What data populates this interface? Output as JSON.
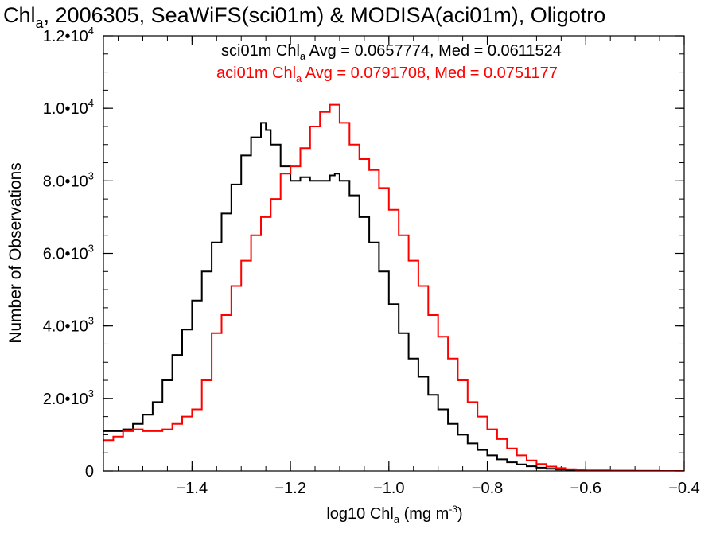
{
  "chart_data": {
    "type": "line",
    "step": true,
    "title": {
      "prefix": "Chl",
      "sub": "a",
      "suffix": ", 2006305, SeaWiFS(sci01m) & MODISA(aci01m), Oligotro"
    },
    "xlabel": {
      "prefix": "log10 Chl",
      "sub": "a",
      "mid": " (mg m",
      "sup": "-3",
      "suffix": ")"
    },
    "ylabel": "Number of Observations",
    "xlim": [
      -1.58,
      -0.4
    ],
    "ylim": [
      0,
      12000
    ],
    "x_ticks": [
      {
        "value": -1.4,
        "label": "−1.4"
      },
      {
        "value": -1.2,
        "label": "−1.2"
      },
      {
        "value": -1.0,
        "label": "−1.0"
      },
      {
        "value": -0.8,
        "label": "−0.8"
      },
      {
        "value": -0.6,
        "label": "−0.6"
      },
      {
        "value": -0.4,
        "label": "−0.4"
      }
    ],
    "y_ticks": [
      {
        "value": 0,
        "mant": "0",
        "exp": ""
      },
      {
        "value": 2000,
        "mant": "2.0•10",
        "exp": "3"
      },
      {
        "value": 4000,
        "mant": "4.0•10",
        "exp": "3"
      },
      {
        "value": 6000,
        "mant": "6.0•10",
        "exp": "3"
      },
      {
        "value": 8000,
        "mant": "8.0•10",
        "exp": "3"
      },
      {
        "value": 10000,
        "mant": "1.0•10",
        "exp": "4"
      },
      {
        "value": 12000,
        "mant": "1.2•10",
        "exp": "4"
      }
    ],
    "x_minor_step": 0.05,
    "y_minor_step": 500,
    "annotations": [
      {
        "prefix": "sci01m Chl",
        "sub": "a",
        "suffix": " Avg = 0.0657774, Med = 0.0611524",
        "color": "#000000"
      },
      {
        "prefix": "aci01m Chl",
        "sub": "a",
        "suffix": " Avg = 0.0791708, Med = 0.0751177",
        "color": "#ff0000"
      }
    ],
    "series": [
      {
        "color": "#000000",
        "x": [
          -1.58,
          -1.56,
          -1.54,
          -1.52,
          -1.5,
          -1.48,
          -1.46,
          -1.44,
          -1.42,
          -1.4,
          -1.38,
          -1.36,
          -1.34,
          -1.32,
          -1.3,
          -1.28,
          -1.26,
          -1.25,
          -1.24,
          -1.22,
          -1.2,
          -1.18,
          -1.16,
          -1.14,
          -1.12,
          -1.11,
          -1.1,
          -1.08,
          -1.06,
          -1.04,
          -1.02,
          -1.0,
          -0.98,
          -0.96,
          -0.94,
          -0.92,
          -0.9,
          -0.88,
          -0.86,
          -0.84,
          -0.82,
          -0.8,
          -0.78,
          -0.76,
          -0.74,
          -0.72,
          -0.7,
          -0.68,
          -0.66,
          -0.64,
          -0.62,
          -0.6,
          -0.55,
          -0.5,
          -0.45,
          -0.4
        ],
        "y": [
          1100,
          1100,
          1150,
          1300,
          1550,
          1900,
          2500,
          3200,
          3900,
          4700,
          5500,
          6300,
          7100,
          7900,
          8700,
          9200,
          9600,
          9400,
          9000,
          8400,
          8000,
          8100,
          8000,
          8000,
          8150,
          8200,
          8000,
          7600,
          7000,
          6300,
          5500,
          4600,
          3800,
          3100,
          2600,
          2100,
          1700,
          1300,
          1000,
          760,
          580,
          430,
          320,
          240,
          180,
          130,
          90,
          60,
          40,
          25,
          15,
          8,
          4,
          2,
          1,
          0
        ]
      },
      {
        "color": "#ff0000",
        "x": [
          -1.58,
          -1.56,
          -1.54,
          -1.52,
          -1.5,
          -1.48,
          -1.46,
          -1.44,
          -1.42,
          -1.4,
          -1.38,
          -1.36,
          -1.34,
          -1.32,
          -1.3,
          -1.28,
          -1.26,
          -1.24,
          -1.22,
          -1.2,
          -1.18,
          -1.16,
          -1.14,
          -1.12,
          -1.1,
          -1.08,
          -1.06,
          -1.04,
          -1.02,
          -1.0,
          -0.98,
          -0.96,
          -0.94,
          -0.92,
          -0.9,
          -0.88,
          -0.86,
          -0.84,
          -0.82,
          -0.8,
          -0.78,
          -0.76,
          -0.74,
          -0.72,
          -0.7,
          -0.68,
          -0.66,
          -0.64,
          -0.62,
          -0.6,
          -0.55,
          -0.5,
          -0.45,
          -0.4
        ],
        "y": [
          850,
          950,
          1100,
          1150,
          1100,
          1100,
          1150,
          1300,
          1500,
          1700,
          2500,
          3800,
          4300,
          5100,
          5800,
          6500,
          7000,
          7500,
          8200,
          8400,
          8900,
          9500,
          9900,
          10100,
          9600,
          9000,
          8600,
          8300,
          7800,
          7200,
          6500,
          5800,
          5100,
          4300,
          3700,
          3100,
          2500,
          1900,
          1500,
          1150,
          880,
          620,
          430,
          290,
          190,
          120,
          80,
          50,
          30,
          18,
          8,
          3,
          1,
          0
        ]
      }
    ]
  }
}
